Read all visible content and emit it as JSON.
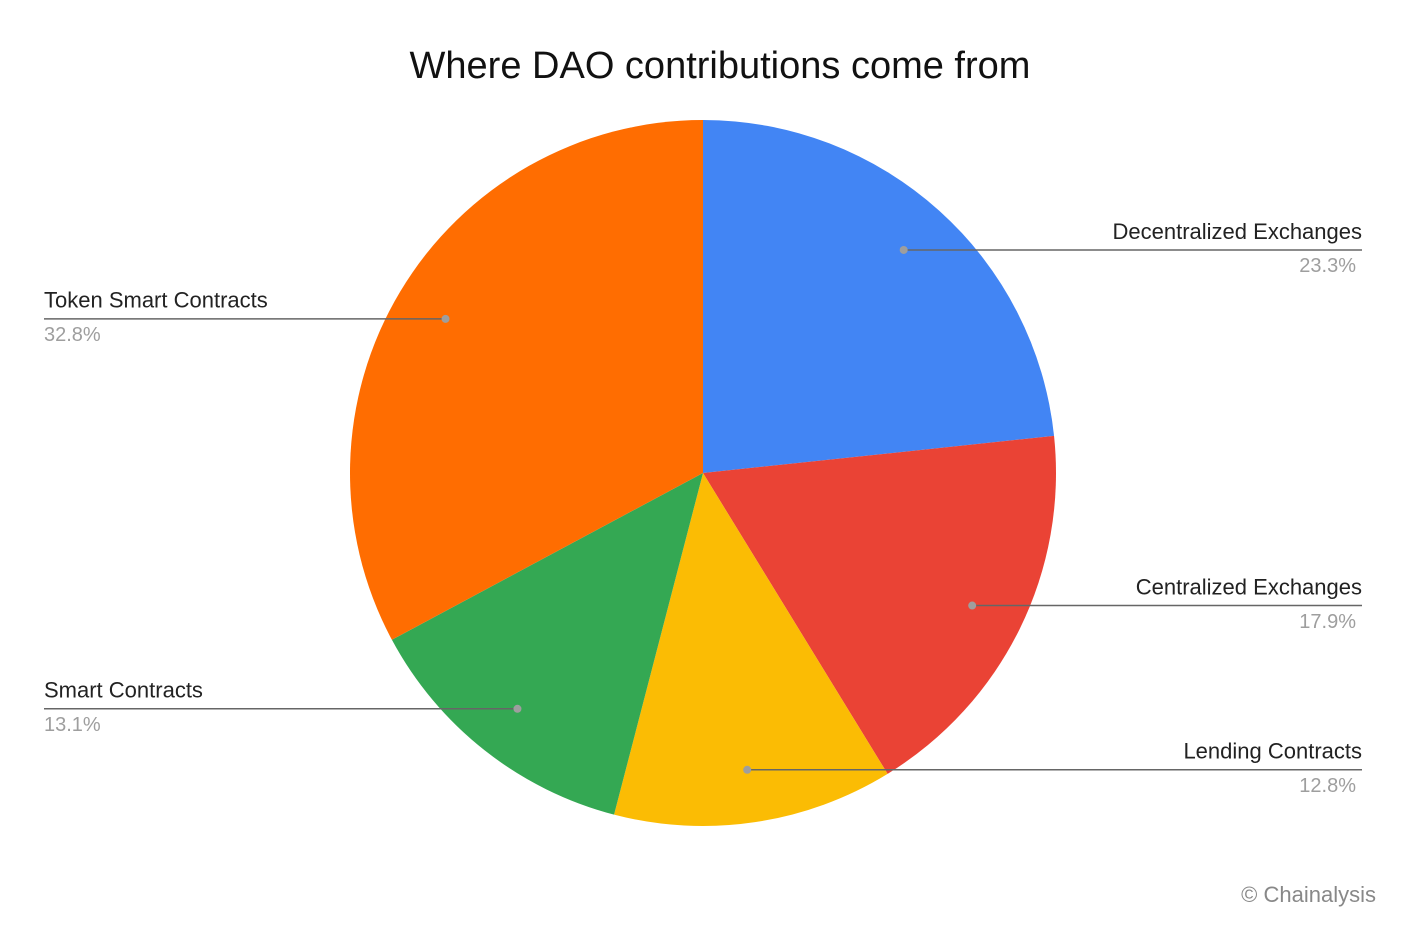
{
  "chart_data": {
    "type": "pie",
    "title": "Where DAO contributions come from",
    "categories": [
      "Decentralized Exchanges",
      "Centralized Exchanges",
      "Lending Contracts",
      "Smart Contracts",
      "Token Smart Contracts"
    ],
    "values": [
      23.3,
      17.9,
      12.8,
      13.1,
      32.8
    ],
    "value_labels": [
      "23.3%",
      "17.9%",
      "12.8%",
      "13.1%",
      "32.8%"
    ],
    "colors": [
      "#4285f4",
      "#ea4335",
      "#fbbc04",
      "#34a853",
      "#ff6d01"
    ],
    "source": "© Chainalysis"
  }
}
